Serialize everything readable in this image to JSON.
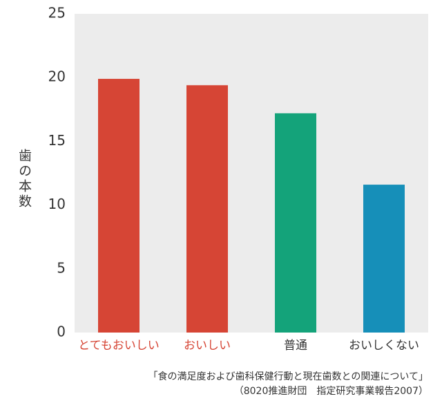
{
  "chart_data": {
    "type": "bar",
    "y_label": "歯の本数",
    "categories": [
      "とてもおいしい",
      "おいしい",
      "普通",
      "おいしくない"
    ],
    "values": [
      19.9,
      19.4,
      17.2,
      11.6
    ],
    "colors": [
      "#d64535",
      "#d64535",
      "#14a37a",
      "#168fb9"
    ],
    "category_label_colors": [
      "#d64535",
      "#d64535",
      "#333333",
      "#333333"
    ],
    "plot_background": "#ececec",
    "ylim": [
      0,
      25
    ],
    "yticks": [
      0,
      5,
      10,
      15,
      20,
      25
    ],
    "source": [
      "「食の満足度および歯科保健行動と現在歯数との関連について」",
      "（8020推進財団　指定研究事業報告2007）"
    ]
  }
}
